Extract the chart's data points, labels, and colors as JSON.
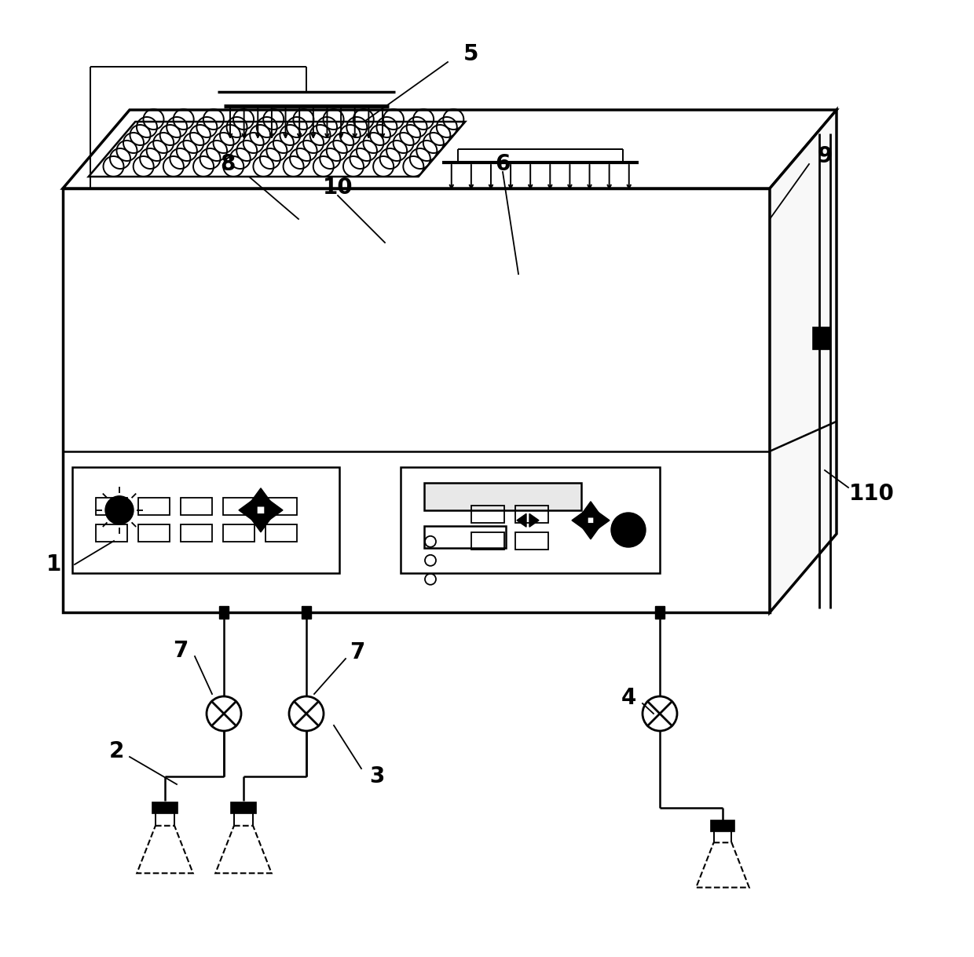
{
  "bg_color": "#ffffff",
  "line_color": "#000000",
  "figsize": [
    12.4,
    12.19
  ],
  "dpi": 100
}
